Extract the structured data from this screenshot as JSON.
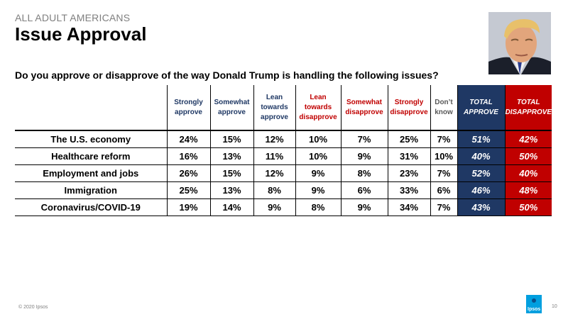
{
  "header": {
    "eyebrow": "ALL ADULT AMERICANS",
    "title": "Issue Approval",
    "question": "Do you approve or disapprove of the way Donald Trump is handling the following issues?"
  },
  "table": {
    "columns": [
      "Strongly approve",
      "Somewhat approve",
      "Lean towards approve",
      "Lean towards disapprove",
      "Somewhat disapprove",
      "Strongly disapprove",
      "Don’t know",
      "TOTAL APPROVE",
      "TOTAL DISAPPROVE"
    ],
    "rows": [
      {
        "label": "The U.S. economy",
        "values": [
          "24%",
          "15%",
          "12%",
          "10%",
          "7%",
          "25%",
          "7%",
          "51%",
          "42%"
        ]
      },
      {
        "label": "Healthcare reform",
        "values": [
          "16%",
          "13%",
          "11%",
          "10%",
          "9%",
          "31%",
          "10%",
          "40%",
          "50%"
        ]
      },
      {
        "label": "Employment and jobs",
        "values": [
          "26%",
          "15%",
          "12%",
          "9%",
          "8%",
          "23%",
          "7%",
          "52%",
          "40%"
        ]
      },
      {
        "label": "Immigration",
        "values": [
          "25%",
          "13%",
          "8%",
          "9%",
          "6%",
          "33%",
          "6%",
          "46%",
          "48%"
        ]
      },
      {
        "label": "Coronavirus/COVID-19",
        "values": [
          "19%",
          "14%",
          "9%",
          "8%",
          "9%",
          "34%",
          "7%",
          "43%",
          "50%"
        ]
      }
    ]
  },
  "footer": {
    "copyright": "© 2020 Ipsos",
    "logo_text": "Ipsos",
    "page_number": "10"
  },
  "colors": {
    "approve": "#1f3864",
    "disapprove": "#c00000",
    "dont_know": "#595959",
    "brand": "#009fdf"
  }
}
